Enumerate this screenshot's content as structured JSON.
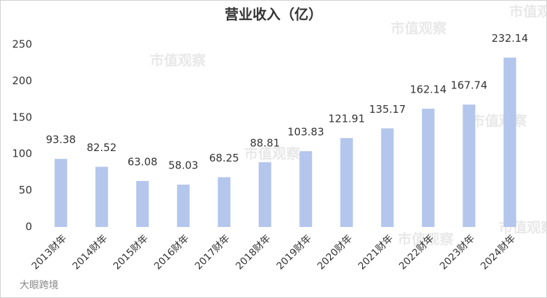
{
  "chart_data": {
    "type": "bar",
    "title": "营业收入（亿）",
    "categories": [
      "2013财年",
      "2014财年",
      "2015财年",
      "2016财年",
      "2017财年",
      "2018财年",
      "2019财年",
      "2020财年",
      "2021财年",
      "2022财年",
      "2023财年",
      "2024财年"
    ],
    "values": [
      93.38,
      82.52,
      63.08,
      58.03,
      68.25,
      88.81,
      103.83,
      121.91,
      135.17,
      162.14,
      167.74,
      232.14
    ],
    "color": "#b4c6ec",
    "ylim": [
      0,
      250
    ],
    "yticks": [
      0,
      50,
      100,
      150,
      200,
      250
    ],
    "grid": false,
    "watermark": "市值观察",
    "source": "大眼跨境"
  }
}
